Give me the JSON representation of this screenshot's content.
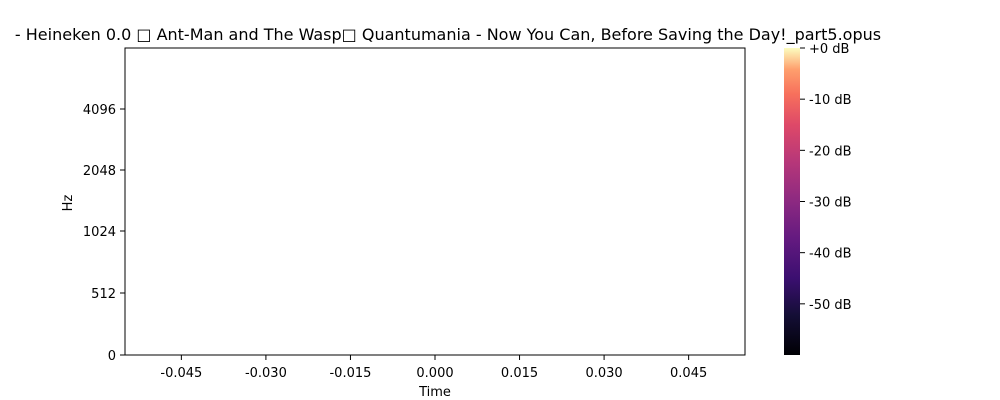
{
  "chart_data": {
    "type": "heatmap",
    "title": "- Heineken 0.0 □ Ant-Man and The Wasp□ Quantumania - Now You Can, Before Saving the Day!_part5.opus",
    "xlabel": "Time",
    "ylabel": "Hz",
    "xlim": [
      -0.055,
      0.055
    ],
    "x_ticks": [
      -0.045,
      -0.03,
      -0.015,
      0.0,
      0.015,
      0.03,
      0.045
    ],
    "x_tick_labels": [
      "-0.045",
      "-0.030",
      "-0.015",
      "0.000",
      "0.015",
      "0.030",
      "0.045"
    ],
    "y_scale": "log2-like (mel/hz display)",
    "y_ticks": [
      0,
      512,
      1024,
      2048,
      4096
    ],
    "y_tick_labels": [
      "0",
      "512",
      "1024",
      "2048",
      "4096"
    ],
    "plot_empty": true,
    "colorbar": {
      "colormap": "magma",
      "range_db": [
        -60,
        0
      ],
      "ticks": [
        0,
        -10,
        -20,
        -30,
        -40,
        -50
      ],
      "tick_labels": [
        "+0 dB",
        "-10 dB",
        "-20 dB",
        "-30 dB",
        "-40 dB",
        "-50 dB"
      ],
      "placement": "right"
    },
    "grid": false
  }
}
